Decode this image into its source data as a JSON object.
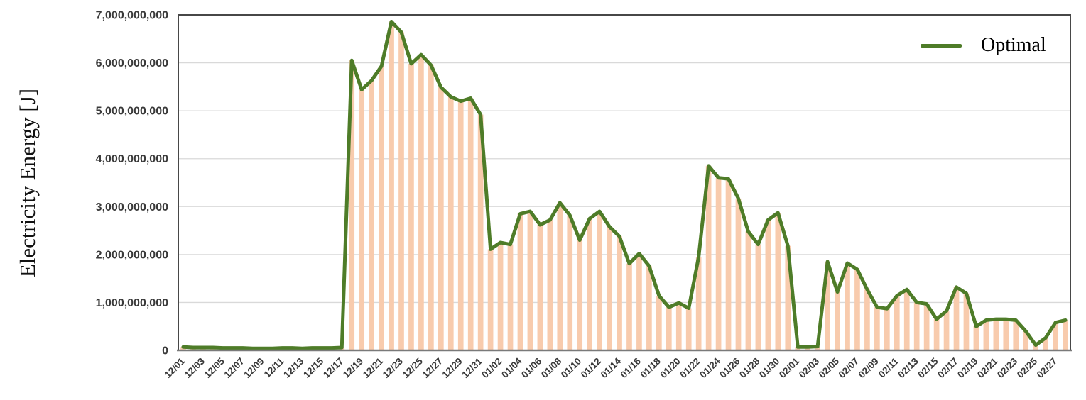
{
  "chart_data": {
    "type": "line",
    "title": "",
    "ylabel": "Electricity Energy [J]",
    "xlabel": "",
    "ylim": [
      0,
      7000000000
    ],
    "y_tick_step": 1000000000,
    "y_ticks": [
      "0",
      "1,000,000,000",
      "2,000,000,000",
      "3,000,000,000",
      "4,000,000,000",
      "5,000,000,000",
      "6,000,000,000",
      "7,000,000,000"
    ],
    "grid": true,
    "legend_position": "top-right-inside",
    "x_label_every": 2,
    "bar_overlay": {
      "color": "#f8cbad",
      "uses_series": "Optimal",
      "note": "thin vertical bars drawn under the line with identical daily values"
    },
    "colors": {
      "line": "#4e7c28",
      "bars": "#f8cbad",
      "gridline": "#d9d9d9",
      "border": "#474747",
      "bottom_axis": "#7a7a7a",
      "tick_text": "#3a3a3a"
    },
    "categories": [
      "12/01",
      "12/02",
      "12/03",
      "12/04",
      "12/05",
      "12/06",
      "12/07",
      "12/08",
      "12/09",
      "12/10",
      "12/11",
      "12/12",
      "12/13",
      "12/14",
      "12/15",
      "12/16",
      "12/17",
      "12/18",
      "12/19",
      "12/20",
      "12/21",
      "12/22",
      "12/23",
      "12/24",
      "12/25",
      "12/26",
      "12/27",
      "12/28",
      "12/29",
      "12/30",
      "12/31",
      "01/01",
      "01/02",
      "01/03",
      "01/04",
      "01/05",
      "01/06",
      "01/07",
      "01/08",
      "01/09",
      "01/10",
      "01/11",
      "01/12",
      "01/13",
      "01/14",
      "01/15",
      "01/16",
      "01/17",
      "01/18",
      "01/19",
      "01/20",
      "01/21",
      "01/22",
      "01/23",
      "01/24",
      "01/25",
      "01/26",
      "01/27",
      "01/28",
      "01/29",
      "01/30",
      "01/31",
      "02/01",
      "02/02",
      "02/03",
      "02/04",
      "02/05",
      "02/06",
      "02/07",
      "02/08",
      "02/09",
      "02/10",
      "02/11",
      "02/12",
      "02/13",
      "02/14",
      "02/15",
      "02/16",
      "02/17",
      "02/18",
      "02/19",
      "02/20",
      "02/21",
      "02/22",
      "02/23",
      "02/24",
      "02/25",
      "02/26",
      "02/27",
      "02/28"
    ],
    "series": [
      {
        "name": "Optimal",
        "color": "#4e7c28",
        "values": [
          70000000,
          60000000,
          60000000,
          60000000,
          50000000,
          50000000,
          50000000,
          40000000,
          40000000,
          40000000,
          50000000,
          50000000,
          40000000,
          50000000,
          50000000,
          50000000,
          60000000,
          6050000000,
          5440000000,
          5630000000,
          5930000000,
          6860000000,
          6640000000,
          5980000000,
          6170000000,
          5950000000,
          5490000000,
          5290000000,
          5200000000,
          5260000000,
          4920000000,
          2110000000,
          2250000000,
          2210000000,
          2850000000,
          2900000000,
          2620000000,
          2720000000,
          3080000000,
          2820000000,
          2300000000,
          2750000000,
          2900000000,
          2580000000,
          2380000000,
          1810000000,
          2020000000,
          1760000000,
          1140000000,
          900000000,
          990000000,
          880000000,
          1950000000,
          3850000000,
          3600000000,
          3580000000,
          3170000000,
          2480000000,
          2210000000,
          2720000000,
          2870000000,
          2180000000,
          70000000,
          70000000,
          80000000,
          1850000000,
          1220000000,
          1820000000,
          1690000000,
          1270000000,
          900000000,
          870000000,
          1140000000,
          1270000000,
          1000000000,
          970000000,
          650000000,
          820000000,
          1320000000,
          1190000000,
          500000000,
          630000000,
          650000000,
          650000000,
          630000000,
          400000000,
          110000000,
          260000000,
          580000000,
          630000000
        ]
      }
    ]
  }
}
